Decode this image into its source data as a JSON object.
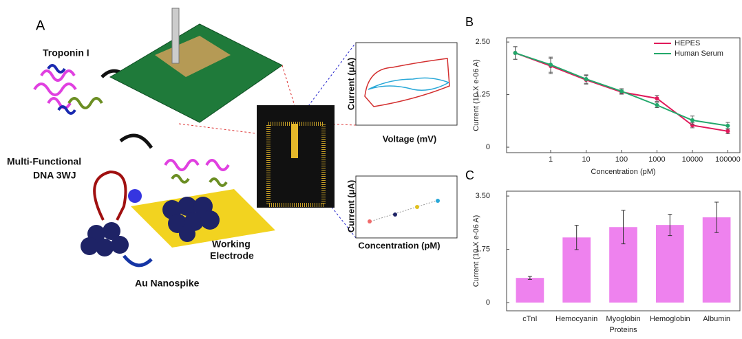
{
  "panel_a": {
    "label": "A",
    "troponin": "Troponin I",
    "dna": [
      "Multi-Functional",
      "DNA 3WJ"
    ],
    "electrode": [
      "Working",
      "Electrode"
    ],
    "nanospike": "Au Nanospike",
    "cv_inset": {
      "y_label": "Current (μA)",
      "x_label": "Voltage (mV)"
    },
    "cal_inset": {
      "y_label": "Current (μA)",
      "x_label": "Concentration (pM)"
    }
  },
  "chart_data": [
    {
      "label": "B",
      "type": "line",
      "x_label": "Concentration (pM)",
      "y_label": "Current (10 X e-06 A)",
      "x": [
        0.1,
        1,
        10,
        100,
        1000,
        10000,
        100000
      ],
      "xscale": "log",
      "xlim": [
        0.057,
        220000
      ],
      "xticks": [
        1,
        10,
        100,
        1000,
        10000,
        100000
      ],
      "ylim": [
        -0.13,
        2.6
      ],
      "yticks": [
        0,
        {
          "value": 1.25,
          "label": "1.25"
        },
        {
          "value": 2.5,
          "label": "2.50"
        }
      ],
      "legend": "top-right",
      "series": [
        {
          "name": "HEPES",
          "color": "#e0195a",
          "values": [
            2.24,
            1.93,
            1.6,
            1.31,
            1.16,
            0.52,
            0.38
          ],
          "errors": [
            0.15,
            0.18,
            0.1,
            0.05,
            0.07,
            0.06,
            0.06
          ]
        },
        {
          "name": "Human Serum",
          "color": "#22a86b",
          "values": [
            2.24,
            1.96,
            1.62,
            1.33,
            1.0,
            0.64,
            0.51
          ],
          "errors": [
            0.15,
            0.18,
            0.1,
            0.06,
            0.06,
            0.1,
            0.08
          ]
        }
      ]
    },
    {
      "label": "C",
      "type": "bar",
      "x_label": "Proteins",
      "y_label": "Current (10 X e-06 A)",
      "categories": [
        "cTnI",
        "Hemocyanin",
        "Myoglobin",
        "Hemoglobin",
        "Albumin"
      ],
      "values": [
        0.81,
        2.14,
        2.48,
        2.55,
        2.8
      ],
      "errors": [
        0.05,
        0.4,
        0.55,
        0.35,
        0.5
      ],
      "color": "#ee82ee",
      "ylim": [
        -0.27,
        3.66
      ],
      "yticks": [
        0,
        {
          "value": 1.75,
          "label": "1.75"
        },
        {
          "value": 3.5,
          "label": "3.50"
        }
      ]
    }
  ]
}
